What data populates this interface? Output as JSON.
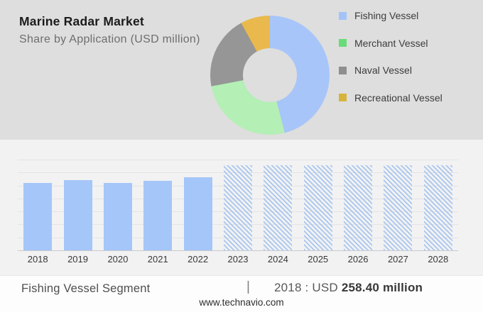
{
  "header": {
    "title": "Marine Radar Market",
    "subtitle": "Share by Application (USD million)"
  },
  "legend": {
    "position": "right",
    "items": [
      {
        "label": "Fishing Vessel",
        "swatch_color": "#a3c2f8"
      },
      {
        "label": "Merchant Vessel",
        "swatch_color": "#68dc78"
      },
      {
        "label": "Naval Vessel",
        "swatch_color": "#8f8f91"
      },
      {
        "label": "Recreational Vessel",
        "swatch_color": "#d8b33c"
      }
    ]
  },
  "chart_data": [
    {
      "type": "pie",
      "subtype": "donut",
      "title": "Share by Application (USD million)",
      "legend_position": "right",
      "segments": [
        {
          "label": "Fishing Vessel",
          "share_pct_est": 46,
          "color": "#a7c5f8"
        },
        {
          "label": "Merchant Vessel",
          "share_pct_est": 26,
          "color": "#b4efb5"
        },
        {
          "label": "Naval Vessel",
          "share_pct_est": 20,
          "color": "#969696"
        },
        {
          "label": "Recreational Vessel",
          "share_pct_est": 8,
          "color": "#e9b94d"
        }
      ],
      "note": "No numeric labels shown in figure; shares estimated from arc angles"
    },
    {
      "type": "bar",
      "series_label": "Fishing Vessel Segment (USD million)",
      "categories": [
        "2018",
        "2019",
        "2020",
        "2021",
        "2022",
        "2023",
        "2024",
        "2025",
        "2026",
        "2027",
        "2028"
      ],
      "values": [
        258.4,
        268,
        258,
        265,
        279,
        null,
        null,
        null,
        null,
        null,
        null
      ],
      "bar_styles": [
        "solid",
        "solid",
        "solid",
        "solid",
        "solid",
        "hatched",
        "hatched",
        "hatched",
        "hatched",
        "hatched",
        "hatched"
      ],
      "bar_heights_pct": [
        74.6,
        77.3,
        74.6,
        76.6,
        80.5,
        93.75,
        93.75,
        93.75,
        93.75,
        93.75,
        93.75
      ],
      "gridline_intervals": 7,
      "grid": true,
      "xlabel": "",
      "ylabel": "",
      "note": "Only the 2018 value (USD 258.40 million) is labeled in the footer; 2019-2022 values estimated from bar heights; 2023-2028 are hatched forecast placeholder bars with no values shown"
    }
  ],
  "footer": {
    "segment_label": "Fishing Vessel Segment",
    "divider": "|",
    "metric_prefix": "2018 : USD",
    "metric_value": "258.40 million",
    "website": "www.technavio.com"
  },
  "colors": {
    "top_bg": "#dedede",
    "chart_bg": "#f2f2f3",
    "footer_bg": "#fdfdfd",
    "bar_solid": "#a5c6f8",
    "bar_hatch_stripe": "#a9c6ee",
    "gridline": "#e3e3e6",
    "axis_line": "#c9c9cd"
  }
}
